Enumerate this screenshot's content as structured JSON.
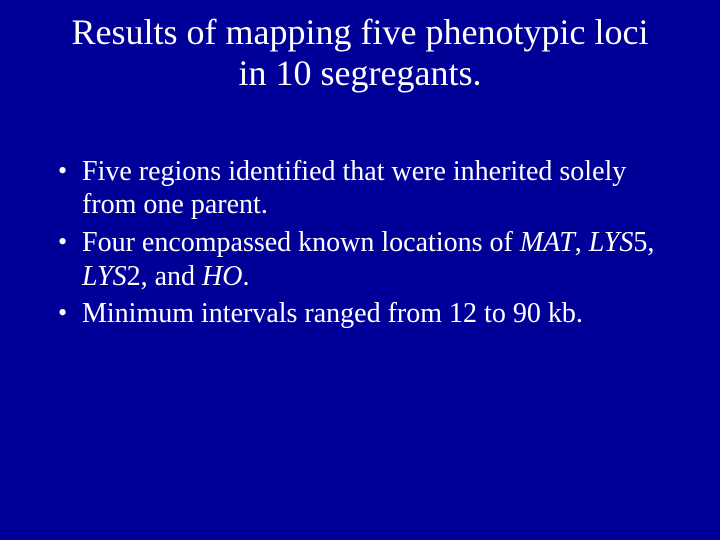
{
  "background_color": "#000099",
  "text_color": "#ffffff",
  "font_family": "Times New Roman",
  "title": {
    "text": "Results of mapping five phenotypic loci in 10 segregants.",
    "fontsize": 36,
    "align": "center"
  },
  "bullets": {
    "fontsize": 28,
    "items": [
      {
        "pre": "Five regions identified that were inherited solely from one parent.",
        "em1": "",
        "mid1": "",
        "em2": "",
        "mid2": "",
        "em3": "",
        "mid3": "",
        "em4": "",
        "post": ""
      },
      {
        "pre": "Four encompassed known locations of ",
        "em1": "MAT",
        "mid1": ", ",
        "em2": "LYS",
        "mid2": "5, ",
        "em3": "LYS",
        "mid3": "2, and ",
        "em4": "HO",
        "post": "."
      },
      {
        "pre": "Minimum intervals ranged from 12 to 90 kb.",
        "em1": "",
        "mid1": "",
        "em2": "",
        "mid2": "",
        "em3": "",
        "mid3": "",
        "em4": "",
        "post": ""
      }
    ]
  }
}
